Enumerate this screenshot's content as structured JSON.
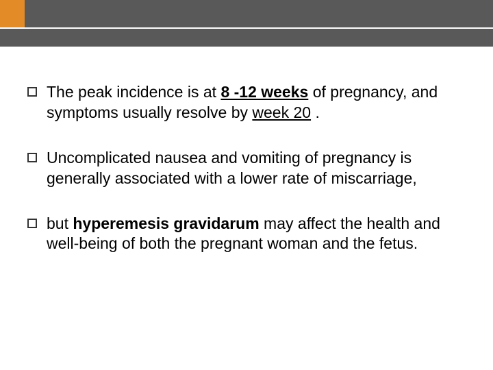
{
  "colors": {
    "accent": "#e38b27",
    "bar_bg": "#595959",
    "text": "#000000",
    "background": "#ffffff",
    "bullet_border": "#333333"
  },
  "typography": {
    "font_family": "Arial, Helvetica, sans-serif",
    "body_fontsize": 23,
    "body_lineheight": 1.3
  },
  "bullets": [
    {
      "segments": [
        {
          "text": "The peak incidence is at ",
          "bold": false,
          "underline": false
        },
        {
          "text": "8 -12 weeks",
          "bold": true,
          "underline": true
        },
        {
          "text": " of pregnancy, and symptoms usually resolve by ",
          "bold": false,
          "underline": false
        },
        {
          "text": "week 20",
          "bold": false,
          "underline": true
        },
        {
          "text": " .",
          "bold": false,
          "underline": false
        }
      ]
    },
    {
      "segments": [
        {
          "text": "Uncomplicated nausea and vomiting of pregnancy is generally associated with a lower rate of miscarriage,",
          "bold": false,
          "underline": false
        }
      ]
    },
    {
      "segments": [
        {
          "text": "but ",
          "bold": false,
          "underline": false
        },
        {
          "text": "hyperemesis gravidarum",
          "bold": true,
          "underline": false
        },
        {
          "text": " may affect the health and well-being of both the pregnant woman and the fetus.",
          "bold": false,
          "underline": false
        }
      ]
    }
  ]
}
